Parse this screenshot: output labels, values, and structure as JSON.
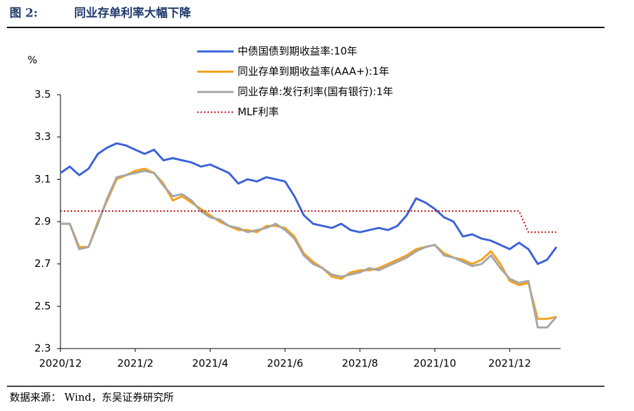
{
  "header": {
    "figure": "图 2:",
    "title": "同业存单利率大幅下降"
  },
  "footer": {
    "source": "数据来源： Wind，东吴证券研究所"
  },
  "chart_data": {
    "type": "line",
    "y_label": "%",
    "categories": [
      "2020/12",
      null,
      null,
      null,
      null,
      null,
      null,
      null,
      "2021/2",
      null,
      null,
      null,
      null,
      null,
      null,
      null,
      "2021/4",
      null,
      null,
      null,
      null,
      null,
      null,
      null,
      "2021/6",
      null,
      null,
      null,
      null,
      null,
      null,
      null,
      "2021/8",
      null,
      null,
      null,
      null,
      null,
      null,
      null,
      "2021/10",
      null,
      null,
      null,
      null,
      null,
      null,
      null,
      "2021/12",
      null,
      null,
      null,
      null,
      null
    ],
    "ylim": [
      2.3,
      3.5
    ],
    "yticks": [
      2.3,
      2.5,
      2.7,
      2.9,
      3.1,
      3.3,
      3.5
    ],
    "grid": false,
    "series": [
      {
        "name": "中债国债到期收益率:10年",
        "color": "#3a62d8",
        "style": "solid",
        "values": [
          3.13,
          3.16,
          3.12,
          3.15,
          3.22,
          3.25,
          3.27,
          3.26,
          3.24,
          3.22,
          3.24,
          3.19,
          3.2,
          3.19,
          3.18,
          3.16,
          3.17,
          3.15,
          3.13,
          3.08,
          3.1,
          3.09,
          3.11,
          3.1,
          3.09,
          3.02,
          2.93,
          2.89,
          2.88,
          2.87,
          2.89,
          2.86,
          2.85,
          2.86,
          2.87,
          2.86,
          2.88,
          2.93,
          3.01,
          2.99,
          2.96,
          2.92,
          2.9,
          2.83,
          2.84,
          2.82,
          2.81,
          2.79,
          2.77,
          2.8,
          2.77,
          2.7,
          2.72,
          2.78
        ]
      },
      {
        "name": "同业存单到期收益率(AAA+):1年",
        "color": "#f5a11c",
        "style": "solid",
        "values": [
          2.89,
          2.89,
          2.78,
          2.78,
          2.9,
          3.0,
          3.1,
          3.12,
          3.14,
          3.15,
          3.13,
          3.08,
          3.0,
          3.02,
          2.99,
          2.96,
          2.93,
          2.9,
          2.88,
          2.86,
          2.86,
          2.85,
          2.88,
          2.88,
          2.87,
          2.83,
          2.75,
          2.71,
          2.68,
          2.64,
          2.63,
          2.66,
          2.67,
          2.67,
          2.68,
          2.7,
          2.72,
          2.74,
          2.77,
          2.78,
          2.79,
          2.75,
          2.73,
          2.72,
          2.7,
          2.72,
          2.76,
          2.7,
          2.62,
          2.6,
          2.61,
          2.44,
          2.44,
          2.45
        ]
      },
      {
        "name": "同业存单:发行利率(国有银行):1年",
        "color": "#a6a6a6",
        "style": "solid",
        "values": [
          2.89,
          2.89,
          2.77,
          2.78,
          2.89,
          3.01,
          3.11,
          3.12,
          3.13,
          3.14,
          3.13,
          3.07,
          3.02,
          3.03,
          3.0,
          2.95,
          2.92,
          2.91,
          2.88,
          2.87,
          2.85,
          2.86,
          2.87,
          2.89,
          2.86,
          2.82,
          2.74,
          2.7,
          2.68,
          2.65,
          2.64,
          2.65,
          2.66,
          2.68,
          2.67,
          2.69,
          2.71,
          2.73,
          2.76,
          2.78,
          2.79,
          2.74,
          2.73,
          2.71,
          2.69,
          2.7,
          2.74,
          2.68,
          2.63,
          2.61,
          2.62,
          2.4,
          2.4,
          2.45
        ]
      },
      {
        "name": "MLF利率",
        "color": "#c00000",
        "style": "dotted",
        "values": [
          2.95,
          2.95,
          2.95,
          2.95,
          2.95,
          2.95,
          2.95,
          2.95,
          2.95,
          2.95,
          2.95,
          2.95,
          2.95,
          2.95,
          2.95,
          2.95,
          2.95,
          2.95,
          2.95,
          2.95,
          2.95,
          2.95,
          2.95,
          2.95,
          2.95,
          2.95,
          2.95,
          2.95,
          2.95,
          2.95,
          2.95,
          2.95,
          2.95,
          2.95,
          2.95,
          2.95,
          2.95,
          2.95,
          2.95,
          2.95,
          2.95,
          2.95,
          2.95,
          2.95,
          2.95,
          2.95,
          2.95,
          2.95,
          2.95,
          2.95,
          2.85,
          2.85,
          2.85,
          2.85
        ]
      }
    ]
  }
}
